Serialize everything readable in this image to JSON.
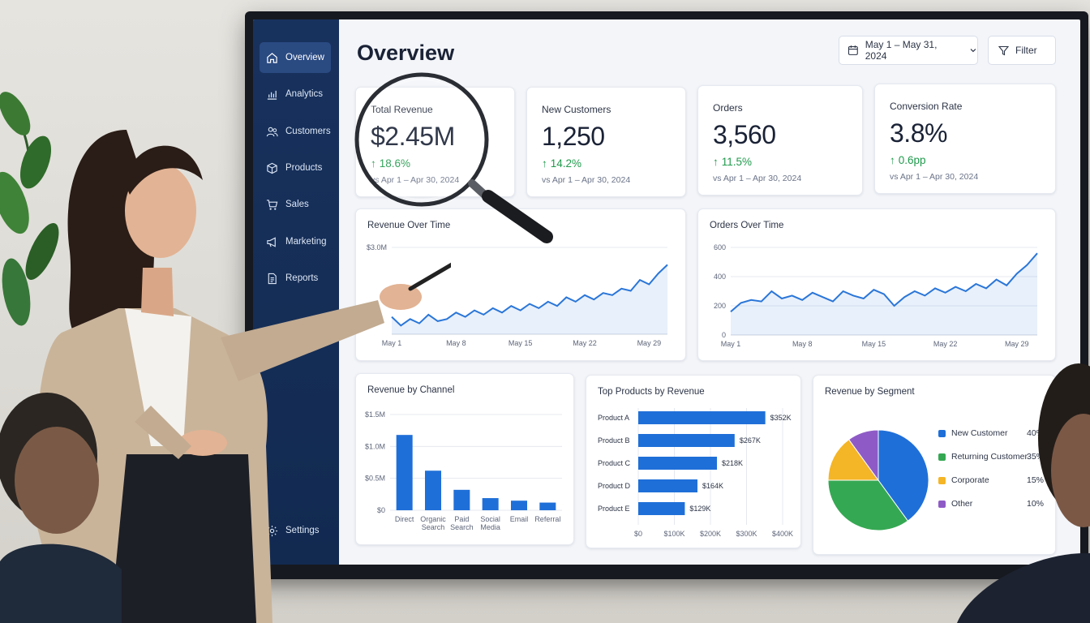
{
  "sidebar": {
    "items": [
      {
        "label": "Overview",
        "icon": "home-icon",
        "active": true
      },
      {
        "label": "Analytics",
        "icon": "bar-chart-icon"
      },
      {
        "label": "Customers",
        "icon": "users-icon"
      },
      {
        "label": "Products",
        "icon": "box-icon"
      },
      {
        "label": "Sales",
        "icon": "cart-icon"
      },
      {
        "label": "Marketing",
        "icon": "megaphone-icon"
      },
      {
        "label": "Reports",
        "icon": "document-icon"
      }
    ],
    "settings_label": "Settings"
  },
  "header": {
    "title": "Overview",
    "date_range": "May 1 – May 31, 2024",
    "filter_label": "Filter"
  },
  "kpis": [
    {
      "label": "Total Revenue",
      "value": "$2.45M",
      "delta": "18.6%",
      "compare": "vs Apr 1 – Apr 30, 2024"
    },
    {
      "label": "New Customers",
      "value": "1,250",
      "delta": "14.2%",
      "compare": "vs Apr 1 – Apr 30, 2024"
    },
    {
      "label": "Orders",
      "value": "3,560",
      "delta": "11.5%",
      "compare": "vs Apr 1 – Apr 30, 2024"
    },
    {
      "label": "Conversion Rate",
      "value": "3.8%",
      "delta": "0.6pp",
      "compare": "vs Apr 1 – Apr 30, 2024"
    }
  ],
  "colors": {
    "sidebar": "#18325e",
    "accent_blue": "#1f6fd8",
    "positive_green": "#1f9a4b",
    "pie_blue": "#1f6fd8",
    "pie_green": "#35a853",
    "pie_yellow": "#f4b526",
    "pie_purple": "#8e5bc6"
  },
  "chart_data": [
    {
      "type": "line",
      "title": "Revenue Over Time",
      "ylabels": [
        "$3.0M",
        "$2.0M"
      ],
      "xlabels": [
        "May 1",
        "May 8",
        "May 15",
        "May 22",
        "May 29"
      ],
      "ylim": [
        1.0,
        3.0
      ],
      "values": [
        1.4,
        1.2,
        1.35,
        1.25,
        1.45,
        1.3,
        1.35,
        1.5,
        1.4,
        1.55,
        1.45,
        1.6,
        1.5,
        1.65,
        1.55,
        1.7,
        1.6,
        1.75,
        1.65,
        1.85,
        1.75,
        1.9,
        1.8,
        1.95,
        1.9,
        2.05,
        2.0,
        2.25,
        2.15,
        2.4,
        2.6
      ]
    },
    {
      "type": "line",
      "title": "Orders Over Time",
      "ylabels": [
        "600",
        "400",
        "200",
        "0"
      ],
      "xlabels": [
        "May 1",
        "May 8",
        "May 15",
        "May 22",
        "May 29"
      ],
      "ylim": [
        0,
        600
      ],
      "values": [
        160,
        220,
        240,
        230,
        300,
        250,
        270,
        240,
        290,
        260,
        230,
        300,
        270,
        250,
        310,
        280,
        200,
        260,
        300,
        270,
        320,
        290,
        330,
        300,
        350,
        320,
        380,
        340,
        420,
        480,
        560
      ]
    },
    {
      "type": "bar",
      "title": "Revenue by Channel",
      "ylabels": [
        "$1.5M",
        "$1.0M",
        "$0.5M",
        "$0"
      ],
      "ylim": [
        0,
        1.5
      ],
      "categories": [
        [
          "Direct"
        ],
        [
          "Organic",
          "Search"
        ],
        [
          "Paid",
          "Search"
        ],
        [
          "Social",
          "Media"
        ],
        [
          "Email"
        ],
        [
          "Referral"
        ]
      ],
      "values": [
        1.18,
        0.62,
        0.32,
        0.19,
        0.15,
        0.12
      ]
    },
    {
      "type": "bar",
      "orientation": "horizontal",
      "title": "Top Products by Revenue",
      "categories": [
        "Product A",
        "Product B",
        "Product C",
        "Product D",
        "Product E"
      ],
      "values": [
        352,
        267,
        218,
        164,
        129
      ],
      "value_labels": [
        "$352K",
        "$267K",
        "$218K",
        "$164K",
        "$129K"
      ],
      "xlabels": [
        "$0",
        "$100K",
        "$200K",
        "$300K",
        "$400K"
      ],
      "xlim": [
        0,
        400
      ]
    },
    {
      "type": "pie",
      "title": "Revenue by Segment",
      "slices": [
        {
          "name": "New Customer",
          "pct": "40%",
          "value": 40,
          "color": "#1f6fd8"
        },
        {
          "name": "Returning Customer",
          "pct": "35%",
          "value": 35,
          "color": "#35a853"
        },
        {
          "name": "Corporate",
          "pct": "15%",
          "value": 15,
          "color": "#f4b526"
        },
        {
          "name": "Other",
          "pct": "10%",
          "value": 10,
          "color": "#8e5bc6"
        }
      ]
    }
  ]
}
